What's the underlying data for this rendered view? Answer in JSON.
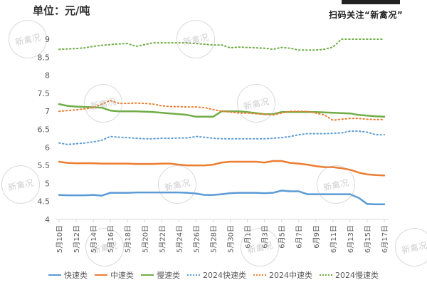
{
  "header": {
    "unit_label": "单位：元/吨",
    "qr_caption": "扫码关注“新禽况”"
  },
  "watermark": {
    "text": "新禽况"
  },
  "colors": {
    "fast": "#5b9bd5",
    "medium": "#ed7d31",
    "slow": "#70ad47",
    "axis": "#d9d9d9",
    "text": "#595959"
  },
  "legend": [
    {
      "label": "快速类",
      "color": "#5b9bd5",
      "style": "solid"
    },
    {
      "label": "中速类",
      "color": "#ed7d31",
      "style": "solid"
    },
    {
      "label": "慢速类",
      "color": "#70ad47",
      "style": "solid"
    },
    {
      "label": "2024快速类",
      "color": "#5b9bd5",
      "style": "dotted"
    },
    {
      "label": "2024中速类",
      "color": "#ed7d31",
      "style": "dotted"
    },
    {
      "label": "2024慢速类",
      "color": "#70ad47",
      "style": "dotted"
    }
  ],
  "chart_data": {
    "type": "line",
    "title": "",
    "ylabel": "单位：元/吨",
    "xlabel": "",
    "ylim": [
      4,
      9
    ],
    "yticks": [
      4,
      4.5,
      5,
      5.5,
      6,
      6.5,
      7,
      7.5,
      8,
      8.5,
      9
    ],
    "grid": false,
    "legend_position": "bottom",
    "x_tick_labels": [
      "5月10日",
      "5月12日",
      "5月14日",
      "5月16日",
      "5月18日",
      "5月20日",
      "5月22日",
      "5月24日",
      "5月26日",
      "5月28日",
      "5月30日",
      "6月1日",
      "6月3日",
      "6月5日",
      "6月7日",
      "6月9日",
      "6月11日",
      "6月13日",
      "6月15日",
      "6月17日"
    ],
    "x": [
      "5/10",
      "5/11",
      "5/12",
      "5/13",
      "5/14",
      "5/15",
      "5/16",
      "5/17",
      "5/18",
      "5/19",
      "5/20",
      "5/21",
      "5/22",
      "5/23",
      "5/24",
      "5/25",
      "5/26",
      "5/27",
      "5/28",
      "5/29",
      "5/30",
      "5/31",
      "6/1",
      "6/2",
      "6/3",
      "6/4",
      "6/5",
      "6/6",
      "6/7",
      "6/8",
      "6/9",
      "6/10",
      "6/11",
      "6/12",
      "6/13",
      "6/14",
      "6/15",
      "6/16",
      "6/17"
    ],
    "series": [
      {
        "name": "快速类",
        "style": "solid",
        "color": "#5b9bd5",
        "values": [
          4.68,
          4.67,
          4.67,
          4.67,
          4.68,
          4.66,
          4.74,
          4.74,
          4.74,
          4.75,
          4.75,
          4.75,
          4.75,
          4.75,
          4.75,
          4.74,
          4.72,
          4.68,
          4.68,
          4.7,
          4.73,
          4.74,
          4.74,
          4.74,
          4.73,
          4.74,
          4.8,
          4.78,
          4.78,
          4.7,
          4.7,
          4.7,
          4.7,
          4.7,
          4.7,
          4.6,
          4.43,
          4.42,
          4.42
        ]
      },
      {
        "name": "中速类",
        "style": "solid",
        "color": "#ed7d31",
        "values": [
          5.6,
          5.57,
          5.56,
          5.56,
          5.56,
          5.55,
          5.55,
          5.55,
          5.55,
          5.54,
          5.54,
          5.54,
          5.55,
          5.55,
          5.52,
          5.5,
          5.5,
          5.5,
          5.52,
          5.58,
          5.6,
          5.6,
          5.6,
          5.6,
          5.58,
          5.62,
          5.62,
          5.57,
          5.55,
          5.52,
          5.48,
          5.45,
          5.45,
          5.42,
          5.38,
          5.3,
          5.25,
          5.23,
          5.22
        ]
      },
      {
        "name": "慢速类",
        "style": "solid",
        "color": "#70ad47",
        "values": [
          7.2,
          7.15,
          7.13,
          7.12,
          7.11,
          7.1,
          7.02,
          7.0,
          7.0,
          7.0,
          6.99,
          6.98,
          6.96,
          6.94,
          6.92,
          6.9,
          6.85,
          6.85,
          6.85,
          7.0,
          7.0,
          7.0,
          6.98,
          6.95,
          6.92,
          6.92,
          6.98,
          6.98,
          6.98,
          6.98,
          6.98,
          6.97,
          6.96,
          6.95,
          6.94,
          6.9,
          6.88,
          6.86,
          6.85
        ]
      },
      {
        "name": "2024快速类",
        "style": "dotted",
        "color": "#5b9bd5",
        "values": [
          6.12,
          6.08,
          6.1,
          6.12,
          6.15,
          6.2,
          6.3,
          6.28,
          6.27,
          6.25,
          6.24,
          6.24,
          6.25,
          6.25,
          6.26,
          6.26,
          6.3,
          6.28,
          6.25,
          6.24,
          6.24,
          6.24,
          6.24,
          6.24,
          6.24,
          6.25,
          6.27,
          6.3,
          6.35,
          6.38,
          6.38,
          6.38,
          6.39,
          6.4,
          6.45,
          6.45,
          6.42,
          6.35,
          6.35
        ]
      },
      {
        "name": "2024中速类",
        "style": "dotted",
        "color": "#ed7d31",
        "values": [
          7.0,
          7.02,
          7.04,
          7.07,
          7.1,
          7.2,
          7.3,
          7.22,
          7.22,
          7.23,
          7.22,
          7.2,
          7.15,
          7.13,
          7.13,
          7.12,
          7.12,
          7.1,
          7.05,
          7.0,
          6.98,
          6.95,
          6.95,
          6.93,
          6.92,
          6.9,
          6.95,
          7.0,
          7.0,
          7.0,
          6.95,
          6.9,
          6.75,
          6.78,
          6.8,
          6.8,
          6.78,
          6.77,
          6.77
        ]
      },
      {
        "name": "2024慢速类",
        "style": "dotted",
        "color": "#70ad47",
        "values": [
          8.72,
          8.73,
          8.74,
          8.76,
          8.8,
          8.83,
          8.85,
          8.87,
          8.88,
          8.8,
          8.85,
          8.9,
          8.9,
          8.9,
          8.9,
          8.9,
          8.88,
          8.86,
          8.84,
          8.84,
          8.76,
          8.78,
          8.77,
          8.76,
          8.75,
          8.72,
          8.77,
          8.75,
          8.7,
          8.7,
          8.7,
          8.72,
          8.78,
          9.0,
          9.0,
          9.0,
          9.0,
          9.0,
          9.0
        ]
      }
    ]
  }
}
